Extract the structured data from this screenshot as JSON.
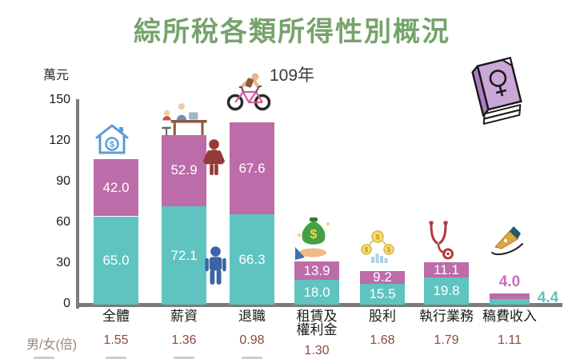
{
  "title": "綜所稅各類所得性別概況",
  "subtitle": "109年",
  "y_axis": {
    "unit_label": "萬元",
    "ticks": [
      0,
      30,
      60,
      90,
      120,
      150
    ]
  },
  "ratio_row": {
    "label": "男/女(倍)"
  },
  "chart_data": {
    "type": "bar",
    "stacked": true,
    "title": "綜所稅各類所得性別概況",
    "subtitle": "109年",
    "ylabel": "萬元",
    "ylim": [
      0,
      150
    ],
    "y_ticks": [
      0,
      30,
      60,
      90,
      120,
      150
    ],
    "grid": false,
    "legend_position": "none",
    "categories": [
      "全體",
      "薪資",
      "退職",
      "租賃及權利金",
      "股利",
      "執行業務",
      "稿費收入"
    ],
    "category_lines": [
      [
        "全體"
      ],
      [
        "薪資"
      ],
      [
        "退職"
      ],
      [
        "租賃及",
        "權利金"
      ],
      [
        "股利"
      ],
      [
        "執行業務"
      ],
      [
        "稿費收入"
      ]
    ],
    "series": [
      {
        "name": "男",
        "color": "#5fc4c0",
        "values": [
          65.0,
          72.1,
          66.3,
          18.0,
          15.5,
          19.8,
          4.4
        ]
      },
      {
        "name": "女",
        "color": "#bc6ca8",
        "values": [
          42.0,
          52.9,
          67.6,
          13.9,
          9.2,
          11.1,
          4.0
        ]
      }
    ],
    "male_female_ratio": [
      "1.55",
      "1.36",
      "0.98",
      "1.30",
      "1.68",
      "1.79",
      "1.11"
    ],
    "labels_outside": [
      false,
      false,
      false,
      false,
      false,
      false,
      true
    ]
  },
  "icons": {
    "per_category": [
      "house-icon",
      "workers-at-desk-icon",
      "bicycle-rider-icon",
      "money-bag-in-hand-icon",
      "coins-chart-icon",
      "stethoscope-icon",
      "fountain-pen-icon"
    ],
    "female_figure": "female-figure-icon",
    "male_figure": "male-figure-icon",
    "top_right": "book-with-female-symbol-icon"
  },
  "colors": {
    "title": "#76a36a",
    "male_bar": "#5fc4c0",
    "female_bar": "#bc6ca8",
    "bar_value_text": "#ffffff",
    "outside_value_female": "#c96fc0",
    "outside_value_male": "#5fc4c0",
    "ratio_value": "#8d4a45",
    "ratio_label": "#9c8474",
    "axis": "#7b7b7b",
    "text": "#2a2a2a"
  }
}
